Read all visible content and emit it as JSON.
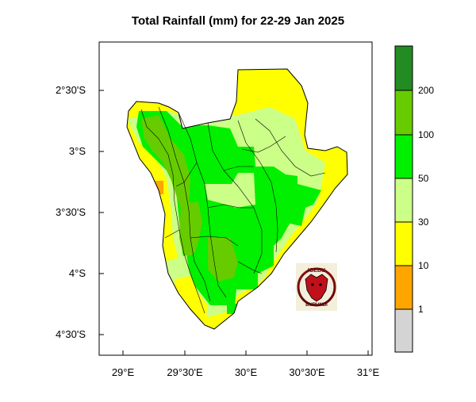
{
  "title": "Total Rainfall (mm) for 22-29 Jan 2025",
  "x_ticks": [
    "29°E",
    "29°30'E",
    "30°E",
    "30°30'E",
    "31°E"
  ],
  "y_ticks": [
    "2°30'S",
    "3°S",
    "3°30'S",
    "4°S",
    "4°30'S"
  ],
  "colorbar": {
    "labels": [
      "1",
      "10",
      "30",
      "50",
      "100",
      "200"
    ],
    "colors": [
      "#d4d4d4",
      "#ffa500",
      "#ffff00",
      "#ccff88",
      "#00f000",
      "#66cc00",
      "#228b22"
    ]
  },
  "logo": {
    "text_top": "IGEBU",
    "text_bottom": "BURUNDI"
  },
  "palette": {
    "orange": "#ffa500",
    "yellow": "#ffff00",
    "light_green": "#ccff88",
    "bright_green": "#00f000",
    "mid_green": "#66cc00"
  }
}
